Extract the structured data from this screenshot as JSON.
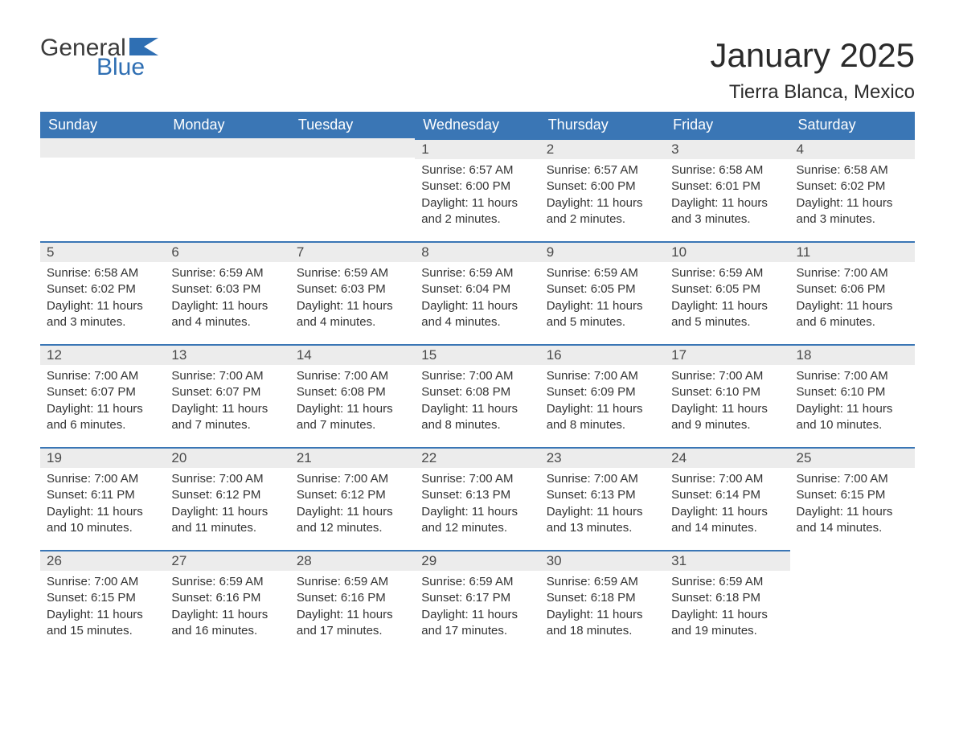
{
  "brand": {
    "part1": "General",
    "part2": "Blue"
  },
  "title": "January 2025",
  "location": "Tierra Blanca, Mexico",
  "colors": {
    "header_bg": "#3a76b5",
    "header_text": "#ffffff",
    "daybar_bg": "#ececec",
    "daybar_border": "#3a76b5",
    "body_text": "#333333",
    "logo_blue": "#2f6fb3"
  },
  "weekdays": [
    "Sunday",
    "Monday",
    "Tuesday",
    "Wednesday",
    "Thursday",
    "Friday",
    "Saturday"
  ],
  "weeks": [
    [
      null,
      null,
      null,
      {
        "n": "1",
        "sr": "Sunrise: 6:57 AM",
        "ss": "Sunset: 6:00 PM",
        "dl": "Daylight: 11 hours and 2 minutes."
      },
      {
        "n": "2",
        "sr": "Sunrise: 6:57 AM",
        "ss": "Sunset: 6:00 PM",
        "dl": "Daylight: 11 hours and 2 minutes."
      },
      {
        "n": "3",
        "sr": "Sunrise: 6:58 AM",
        "ss": "Sunset: 6:01 PM",
        "dl": "Daylight: 11 hours and 3 minutes."
      },
      {
        "n": "4",
        "sr": "Sunrise: 6:58 AM",
        "ss": "Sunset: 6:02 PM",
        "dl": "Daylight: 11 hours and 3 minutes."
      }
    ],
    [
      {
        "n": "5",
        "sr": "Sunrise: 6:58 AM",
        "ss": "Sunset: 6:02 PM",
        "dl": "Daylight: 11 hours and 3 minutes."
      },
      {
        "n": "6",
        "sr": "Sunrise: 6:59 AM",
        "ss": "Sunset: 6:03 PM",
        "dl": "Daylight: 11 hours and 4 minutes."
      },
      {
        "n": "7",
        "sr": "Sunrise: 6:59 AM",
        "ss": "Sunset: 6:03 PM",
        "dl": "Daylight: 11 hours and 4 minutes."
      },
      {
        "n": "8",
        "sr": "Sunrise: 6:59 AM",
        "ss": "Sunset: 6:04 PM",
        "dl": "Daylight: 11 hours and 4 minutes."
      },
      {
        "n": "9",
        "sr": "Sunrise: 6:59 AM",
        "ss": "Sunset: 6:05 PM",
        "dl": "Daylight: 11 hours and 5 minutes."
      },
      {
        "n": "10",
        "sr": "Sunrise: 6:59 AM",
        "ss": "Sunset: 6:05 PM",
        "dl": "Daylight: 11 hours and 5 minutes."
      },
      {
        "n": "11",
        "sr": "Sunrise: 7:00 AM",
        "ss": "Sunset: 6:06 PM",
        "dl": "Daylight: 11 hours and 6 minutes."
      }
    ],
    [
      {
        "n": "12",
        "sr": "Sunrise: 7:00 AM",
        "ss": "Sunset: 6:07 PM",
        "dl": "Daylight: 11 hours and 6 minutes."
      },
      {
        "n": "13",
        "sr": "Sunrise: 7:00 AM",
        "ss": "Sunset: 6:07 PM",
        "dl": "Daylight: 11 hours and 7 minutes."
      },
      {
        "n": "14",
        "sr": "Sunrise: 7:00 AM",
        "ss": "Sunset: 6:08 PM",
        "dl": "Daylight: 11 hours and 7 minutes."
      },
      {
        "n": "15",
        "sr": "Sunrise: 7:00 AM",
        "ss": "Sunset: 6:08 PM",
        "dl": "Daylight: 11 hours and 8 minutes."
      },
      {
        "n": "16",
        "sr": "Sunrise: 7:00 AM",
        "ss": "Sunset: 6:09 PM",
        "dl": "Daylight: 11 hours and 8 minutes."
      },
      {
        "n": "17",
        "sr": "Sunrise: 7:00 AM",
        "ss": "Sunset: 6:10 PM",
        "dl": "Daylight: 11 hours and 9 minutes."
      },
      {
        "n": "18",
        "sr": "Sunrise: 7:00 AM",
        "ss": "Sunset: 6:10 PM",
        "dl": "Daylight: 11 hours and 10 minutes."
      }
    ],
    [
      {
        "n": "19",
        "sr": "Sunrise: 7:00 AM",
        "ss": "Sunset: 6:11 PM",
        "dl": "Daylight: 11 hours and 10 minutes."
      },
      {
        "n": "20",
        "sr": "Sunrise: 7:00 AM",
        "ss": "Sunset: 6:12 PM",
        "dl": "Daylight: 11 hours and 11 minutes."
      },
      {
        "n": "21",
        "sr": "Sunrise: 7:00 AM",
        "ss": "Sunset: 6:12 PM",
        "dl": "Daylight: 11 hours and 12 minutes."
      },
      {
        "n": "22",
        "sr": "Sunrise: 7:00 AM",
        "ss": "Sunset: 6:13 PM",
        "dl": "Daylight: 11 hours and 12 minutes."
      },
      {
        "n": "23",
        "sr": "Sunrise: 7:00 AM",
        "ss": "Sunset: 6:13 PM",
        "dl": "Daylight: 11 hours and 13 minutes."
      },
      {
        "n": "24",
        "sr": "Sunrise: 7:00 AM",
        "ss": "Sunset: 6:14 PM",
        "dl": "Daylight: 11 hours and 14 minutes."
      },
      {
        "n": "25",
        "sr": "Sunrise: 7:00 AM",
        "ss": "Sunset: 6:15 PM",
        "dl": "Daylight: 11 hours and 14 minutes."
      }
    ],
    [
      {
        "n": "26",
        "sr": "Sunrise: 7:00 AM",
        "ss": "Sunset: 6:15 PM",
        "dl": "Daylight: 11 hours and 15 minutes."
      },
      {
        "n": "27",
        "sr": "Sunrise: 6:59 AM",
        "ss": "Sunset: 6:16 PM",
        "dl": "Daylight: 11 hours and 16 minutes."
      },
      {
        "n": "28",
        "sr": "Sunrise: 6:59 AM",
        "ss": "Sunset: 6:16 PM",
        "dl": "Daylight: 11 hours and 17 minutes."
      },
      {
        "n": "29",
        "sr": "Sunrise: 6:59 AM",
        "ss": "Sunset: 6:17 PM",
        "dl": "Daylight: 11 hours and 17 minutes."
      },
      {
        "n": "30",
        "sr": "Sunrise: 6:59 AM",
        "ss": "Sunset: 6:18 PM",
        "dl": "Daylight: 11 hours and 18 minutes."
      },
      {
        "n": "31",
        "sr": "Sunrise: 6:59 AM",
        "ss": "Sunset: 6:18 PM",
        "dl": "Daylight: 11 hours and 19 minutes."
      },
      null
    ]
  ]
}
